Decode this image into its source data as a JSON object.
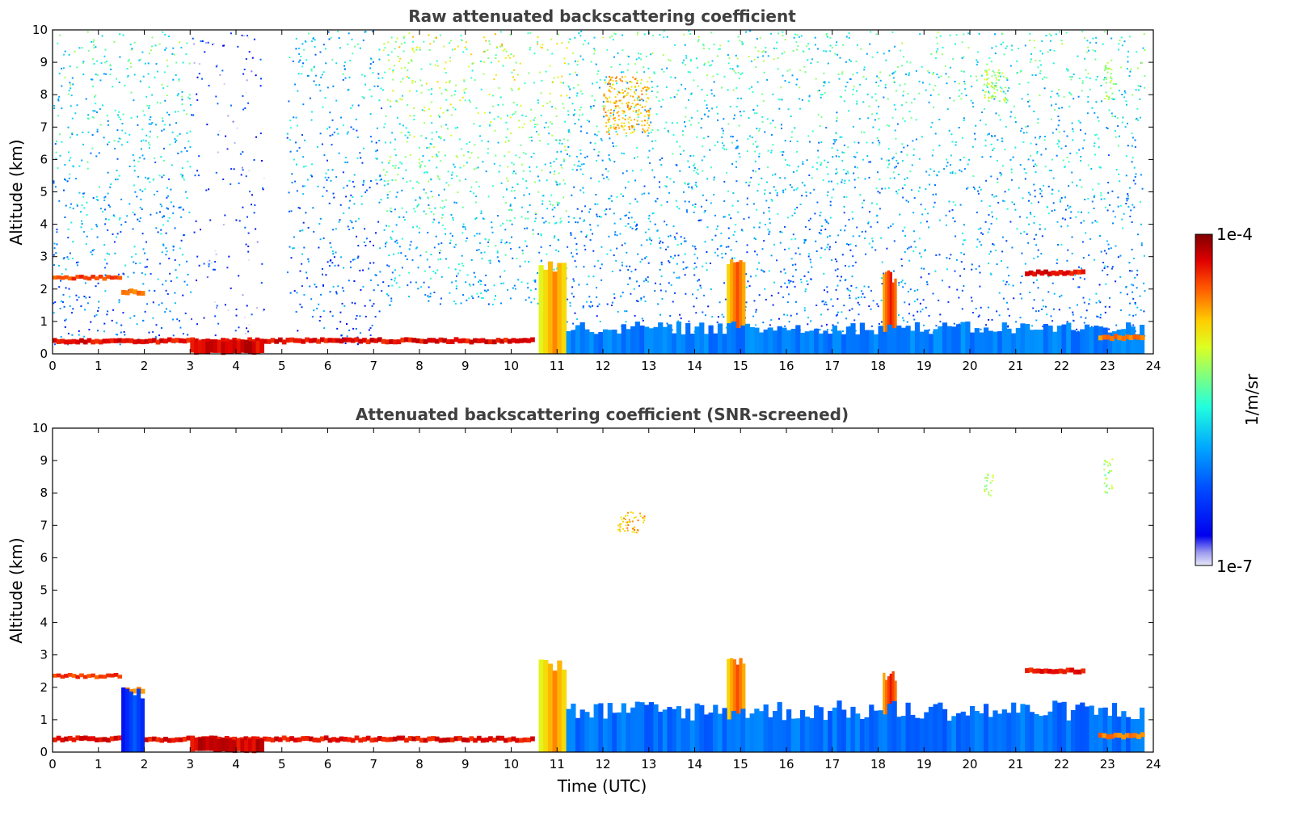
{
  "chart_data": [
    {
      "id": "raw",
      "type": "heatmap",
      "title": "Raw attenuated backscattering coefficient",
      "xlabel": "",
      "ylabel": "Altitude (km)",
      "xlim": [
        0,
        24
      ],
      "ylim": [
        0,
        10
      ],
      "xticks": [
        0,
        1,
        2,
        3,
        4,
        5,
        6,
        7,
        8,
        9,
        10,
        11,
        12,
        13,
        14,
        15,
        16,
        17,
        18,
        19,
        20,
        21,
        22,
        23,
        24
      ],
      "yticks": [
        0,
        1,
        2,
        3,
        4,
        5,
        6,
        7,
        8,
        9,
        10
      ],
      "features": [
        {
          "kind": "noise",
          "t0": 0,
          "t1": 3,
          "z0": 0.3,
          "z1": 10,
          "level": 0.45
        },
        {
          "kind": "noise",
          "t0": 3,
          "t1": 4.6,
          "z0": 0.3,
          "z1": 10,
          "level": 0.05
        },
        {
          "kind": "noise",
          "t0": 5.1,
          "t1": 7.2,
          "z0": 0.3,
          "z1": 10,
          "level": 0.35
        },
        {
          "kind": "noise",
          "t0": 7.2,
          "t1": 11.2,
          "z0": 1.5,
          "z1": 10,
          "level": 0.6
        },
        {
          "kind": "noise",
          "t0": 11.2,
          "t1": 23.8,
          "z0": 0.3,
          "z1": 10,
          "level": 0.45
        },
        {
          "kind": "layer",
          "t0": 0,
          "t1": 10.5,
          "z": 0.4,
          "thick": 0.15,
          "value": 0.95
        },
        {
          "kind": "layer",
          "t0": 3,
          "t1": 4.6,
          "z": 0.2,
          "thick": 0.4,
          "value": 0.97
        },
        {
          "kind": "layer",
          "t0": 0,
          "t1": 1.5,
          "z": 2.35,
          "thick": 0.12,
          "value": 0.9
        },
        {
          "kind": "layer",
          "t0": 1.5,
          "t1": 2.0,
          "z": 1.9,
          "thick": 0.15,
          "value": 0.85
        },
        {
          "kind": "plume",
          "t0": 10.6,
          "t1": 11.2,
          "z0": 0,
          "z1": 2.9,
          "value": 0.8
        },
        {
          "kind": "plume",
          "t0": 14.7,
          "t1": 15.1,
          "z0": 0,
          "z1": 3.0,
          "value": 0.85
        },
        {
          "kind": "plume",
          "t0": 18.1,
          "t1": 18.4,
          "z0": 0,
          "z1": 2.6,
          "value": 0.9
        },
        {
          "kind": "boundary",
          "t0": 11.2,
          "t1": 23.8,
          "z0": 0,
          "z1": 1.0,
          "value": 0.3
        },
        {
          "kind": "layer",
          "t0": 21.2,
          "t1": 22.5,
          "z": 2.5,
          "thick": 0.15,
          "value": 0.95
        },
        {
          "kind": "layer",
          "t0": 22.8,
          "t1": 23.8,
          "z": 0.5,
          "thick": 0.15,
          "value": 0.85
        },
        {
          "kind": "cirrus",
          "t0": 12.0,
          "t1": 13.0,
          "z0": 6.8,
          "z1": 8.6,
          "value": 0.75
        },
        {
          "kind": "cirrus",
          "t0": 20.3,
          "t1": 20.8,
          "z0": 7.8,
          "z1": 8.8,
          "value": 0.62
        },
        {
          "kind": "cirrus",
          "t0": 22.9,
          "t1": 23.1,
          "z0": 7.8,
          "z1": 9.1,
          "value": 0.6
        }
      ]
    },
    {
      "id": "screened",
      "type": "heatmap",
      "title": "Attenuated backscattering coefficient (SNR-screened)",
      "xlabel": "Time (UTC)",
      "ylabel": "Altitude (km)",
      "xlim": [
        0,
        24
      ],
      "ylim": [
        0,
        10
      ],
      "xticks": [
        0,
        1,
        2,
        3,
        4,
        5,
        6,
        7,
        8,
        9,
        10,
        11,
        12,
        13,
        14,
        15,
        16,
        17,
        18,
        19,
        20,
        21,
        22,
        23,
        24
      ],
      "yticks": [
        0,
        1,
        2,
        3,
        4,
        5,
        6,
        7,
        8,
        9,
        10
      ],
      "features": [
        {
          "kind": "layer",
          "t0": 0,
          "t1": 10.5,
          "z": 0.4,
          "thick": 0.15,
          "value": 0.95
        },
        {
          "kind": "layer",
          "t0": 3,
          "t1": 4.6,
          "z": 0.2,
          "thick": 0.4,
          "value": 0.97
        },
        {
          "kind": "layer",
          "t0": 0,
          "t1": 1.5,
          "z": 2.35,
          "thick": 0.12,
          "value": 0.9
        },
        {
          "kind": "layer",
          "t0": 1.5,
          "t1": 2.0,
          "z": 1.9,
          "thick": 0.15,
          "value": 0.85
        },
        {
          "kind": "plume",
          "t0": 1.5,
          "t1": 2.0,
          "z0": 0,
          "z1": 2.0,
          "value": 0.25
        },
        {
          "kind": "plume",
          "t0": 10.6,
          "t1": 11.2,
          "z0": 0,
          "z1": 2.9,
          "value": 0.8
        },
        {
          "kind": "plume",
          "t0": 14.7,
          "t1": 15.1,
          "z0": 0,
          "z1": 3.0,
          "value": 0.85
        },
        {
          "kind": "plume",
          "t0": 18.1,
          "t1": 18.4,
          "z0": 0,
          "z1": 2.6,
          "value": 0.9
        },
        {
          "kind": "boundary",
          "t0": 11.2,
          "t1": 23.8,
          "z0": 0,
          "z1": 1.6,
          "value": 0.28
        },
        {
          "kind": "layer",
          "t0": 21.2,
          "t1": 22.5,
          "z": 2.5,
          "thick": 0.15,
          "value": 0.95
        },
        {
          "kind": "layer",
          "t0": 22.8,
          "t1": 23.8,
          "z": 0.5,
          "thick": 0.15,
          "value": 0.85
        },
        {
          "kind": "cirrus",
          "t0": 12.3,
          "t1": 12.9,
          "z0": 6.8,
          "z1": 7.5,
          "value": 0.75
        },
        {
          "kind": "cirrus",
          "t0": 20.3,
          "t1": 20.5,
          "z0": 7.9,
          "z1": 8.7,
          "value": 0.62
        },
        {
          "kind": "cirrus",
          "t0": 22.9,
          "t1": 23.1,
          "z0": 8.0,
          "z1": 9.1,
          "value": 0.6
        }
      ]
    }
  ],
  "colorbar": {
    "max_label": "1e-4",
    "min_label": "1e-7",
    "unit_label": "1/m/sr",
    "scale": "log",
    "range": [
      1e-07,
      0.0001
    ]
  },
  "colors": {
    "title": "#404040",
    "jet_dark_blue": "#00008f",
    "jet_dark_red": "#800000"
  }
}
